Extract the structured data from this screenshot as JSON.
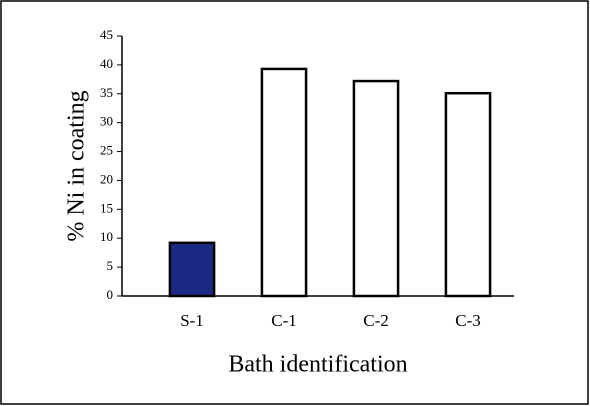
{
  "chart_data": {
    "type": "bar",
    "xlabel": "Bath identification",
    "ylabel": "% Ni in coating",
    "categories": [
      "S-1",
      "C-1",
      "C-2",
      "C-3"
    ],
    "values": [
      9.2,
      39.3,
      37.2,
      35.1
    ],
    "colors": [
      "#1c2a86",
      "#ffffff",
      "#ffffff",
      "#ffffff"
    ],
    "ylim": [
      0,
      45
    ],
    "yticks": [
      0,
      5,
      10,
      15,
      20,
      25,
      30,
      35,
      40,
      45
    ],
    "grid": false
  }
}
